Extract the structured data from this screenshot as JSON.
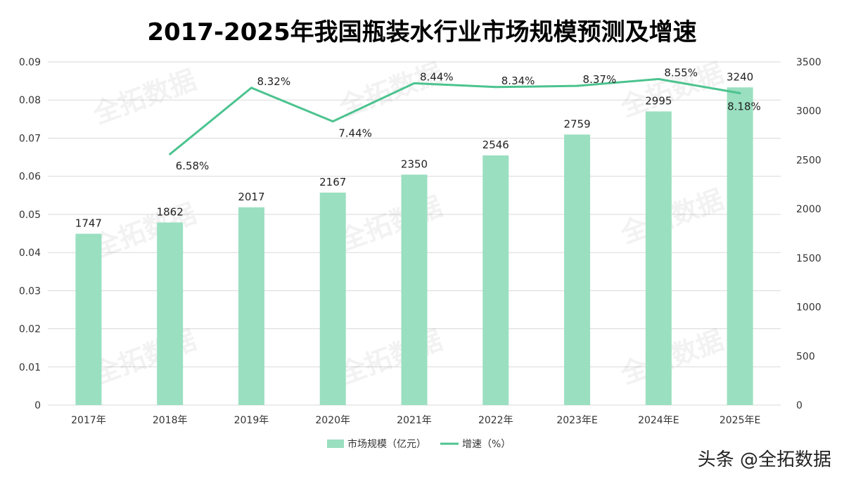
{
  "chart_data": {
    "type": "bar+line",
    "title": "2017-2025年我国瓶装水行业市场规模预测及增速",
    "categories": [
      "2017年",
      "2018年",
      "2019年",
      "2020年",
      "2021年",
      "2022年",
      "2023年E",
      "2024年E",
      "2025年E"
    ],
    "series": [
      {
        "name": "市场规模（亿元）",
        "type": "bar",
        "axis": "right",
        "values": [
          1747,
          1862,
          2017,
          2167,
          2350,
          2546,
          2759,
          2995,
          3240
        ],
        "labels": [
          "1747",
          "1862",
          "2017",
          "2167",
          "2350",
          "2546",
          "2759",
          "2995",
          "3240"
        ],
        "color": "#9adfc0"
      },
      {
        "name": "增速（%）",
        "type": "line",
        "axis": "left",
        "values": [
          null,
          0.0658,
          0.0832,
          0.0744,
          0.0844,
          0.0834,
          0.0837,
          0.0855,
          0.0818
        ],
        "labels": [
          "",
          "6.58%",
          "8.32%",
          "7.44%",
          "8.44%",
          "8.34%",
          "8.37%",
          "8.55%",
          "8.18%"
        ],
        "color": "#4cc38f"
      }
    ],
    "left_axis": {
      "range": [
        0,
        0.09
      ],
      "ticks": [
        "0",
        "0.01",
        "0.02",
        "0.03",
        "0.04",
        "0.05",
        "0.06",
        "0.07",
        "0.08",
        "0.09"
      ]
    },
    "right_axis": {
      "range": [
        0,
        3500
      ],
      "ticks": [
        "0",
        "500",
        "1000",
        "1500",
        "2000",
        "2500",
        "3000",
        "3500"
      ]
    },
    "grid": true,
    "legend_position": "bottom"
  },
  "watermark": "全拓数据",
  "credit": "头条 @全拓数据"
}
